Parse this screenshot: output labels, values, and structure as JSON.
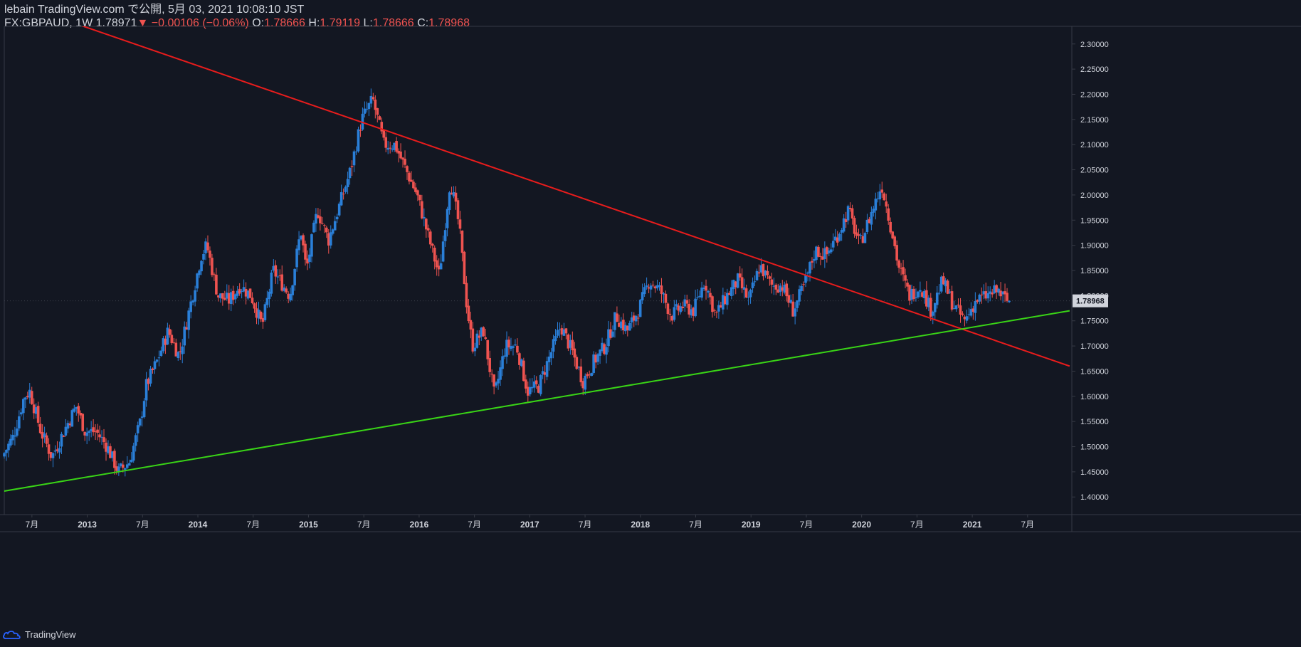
{
  "header": {
    "publish": "lebain TradingView.com で公開, 5月 03, 2021 10:08:10 JST",
    "symbol": "FX:GBPAUD, 1W",
    "last": "1.78971",
    "change": "−0.00106 (−0.06%)",
    "o_label": "O:",
    "o": "1.78666",
    "h_label": "H:",
    "h": "1.79119",
    "l_label": "L:",
    "l": "1.78666",
    "c_label": "C:",
    "c": "1.78968"
  },
  "footer": {
    "brand": "TradingView"
  },
  "colors": {
    "background": "#131722",
    "up": "#2a7fd8",
    "down": "#ef5350",
    "resistance": "#e81c1c",
    "support": "#39d416",
    "grid": "#2a2e39",
    "axis_text": "#d1d4dc"
  },
  "chart_data": {
    "type": "candlestick",
    "title": "FX:GBPAUD, 1W",
    "ylim": [
      1.365,
      2.335
    ],
    "y_ticks": [
      "1.40000",
      "1.45000",
      "1.50000",
      "1.55000",
      "1.60000",
      "1.65000",
      "1.70000",
      "1.75000",
      "1.80000",
      "1.85000",
      "1.90000",
      "1.95000",
      "2.00000",
      "2.05000",
      "2.10000",
      "2.15000",
      "2.20000",
      "2.25000",
      "2.30000"
    ],
    "last_price_label": "1.78968",
    "last_price": 1.78968,
    "x_range": [
      2012.25,
      2021.9
    ],
    "x_ticks": [
      {
        "label": "7月",
        "t": 2012.5
      },
      {
        "label": "2013",
        "t": 2013.0
      },
      {
        "label": "7月",
        "t": 2013.5
      },
      {
        "label": "2014",
        "t": 2014.0
      },
      {
        "label": "7月",
        "t": 2014.5
      },
      {
        "label": "2015",
        "t": 2015.0
      },
      {
        "label": "7月",
        "t": 2015.5
      },
      {
        "label": "2016",
        "t": 2016.0
      },
      {
        "label": "7月",
        "t": 2016.5
      },
      {
        "label": "2017",
        "t": 2017.0
      },
      {
        "label": "7月",
        "t": 2017.5
      },
      {
        "label": "2018",
        "t": 2018.0
      },
      {
        "label": "7月",
        "t": 2018.5
      },
      {
        "label": "2019",
        "t": 2019.0
      },
      {
        "label": "7月",
        "t": 2019.5
      },
      {
        "label": "2020",
        "t": 2020.0
      },
      {
        "label": "7月",
        "t": 2020.5
      },
      {
        "label": "2021",
        "t": 2021.0
      },
      {
        "label": "7月",
        "t": 2021.5
      }
    ],
    "price_path": [
      [
        2012.25,
        1.48
      ],
      [
        2012.35,
        1.52
      ],
      [
        2012.45,
        1.6
      ],
      [
        2012.5,
        1.61
      ],
      [
        2012.6,
        1.53
      ],
      [
        2012.7,
        1.48
      ],
      [
        2012.85,
        1.55
      ],
      [
        2012.92,
        1.58
      ],
      [
        2013.0,
        1.53
      ],
      [
        2013.1,
        1.53
      ],
      [
        2013.2,
        1.5
      ],
      [
        2013.3,
        1.45
      ],
      [
        2013.4,
        1.47
      ],
      [
        2013.5,
        1.55
      ],
      [
        2013.55,
        1.62
      ],
      [
        2013.65,
        1.67
      ],
      [
        2013.75,
        1.73
      ],
      [
        2013.85,
        1.68
      ],
      [
        2013.92,
        1.75
      ],
      [
        2014.0,
        1.83
      ],
      [
        2014.05,
        1.88
      ],
      [
        2014.1,
        1.9
      ],
      [
        2014.2,
        1.8
      ],
      [
        2014.3,
        1.79
      ],
      [
        2014.4,
        1.82
      ],
      [
        2014.5,
        1.8
      ],
      [
        2014.6,
        1.74
      ],
      [
        2014.7,
        1.85
      ],
      [
        2014.85,
        1.8
      ],
      [
        2014.95,
        1.93
      ],
      [
        2015.0,
        1.85
      ],
      [
        2015.1,
        1.97
      ],
      [
        2015.2,
        1.91
      ],
      [
        2015.3,
        1.98
      ],
      [
        2015.4,
        2.05
      ],
      [
        2015.5,
        2.15
      ],
      [
        2015.6,
        2.19
      ],
      [
        2015.7,
        2.1
      ],
      [
        2015.8,
        2.1
      ],
      [
        2015.9,
        2.05
      ],
      [
        2016.0,
        2.0
      ],
      [
        2016.1,
        1.92
      ],
      [
        2016.2,
        1.84
      ],
      [
        2016.3,
        2.03
      ],
      [
        2016.38,
        1.94
      ],
      [
        2016.45,
        1.78
      ],
      [
        2016.5,
        1.7
      ],
      [
        2016.6,
        1.73
      ],
      [
        2016.7,
        1.6
      ],
      [
        2016.8,
        1.7
      ],
      [
        2016.9,
        1.7
      ],
      [
        2017.0,
        1.61
      ],
      [
        2017.1,
        1.62
      ],
      [
        2017.2,
        1.68
      ],
      [
        2017.3,
        1.74
      ],
      [
        2017.4,
        1.69
      ],
      [
        2017.5,
        1.63
      ],
      [
        2017.6,
        1.67
      ],
      [
        2017.7,
        1.7
      ],
      [
        2017.8,
        1.76
      ],
      [
        2017.9,
        1.73
      ],
      [
        2018.0,
        1.77
      ],
      [
        2018.1,
        1.83
      ],
      [
        2018.2,
        1.81
      ],
      [
        2018.3,
        1.76
      ],
      [
        2018.4,
        1.78
      ],
      [
        2018.5,
        1.77
      ],
      [
        2018.6,
        1.83
      ],
      [
        2018.7,
        1.76
      ],
      [
        2018.8,
        1.8
      ],
      [
        2018.9,
        1.83
      ],
      [
        2019.0,
        1.79
      ],
      [
        2019.1,
        1.86
      ],
      [
        2019.2,
        1.82
      ],
      [
        2019.3,
        1.82
      ],
      [
        2019.4,
        1.77
      ],
      [
        2019.5,
        1.82
      ],
      [
        2019.6,
        1.89
      ],
      [
        2019.7,
        1.88
      ],
      [
        2019.8,
        1.92
      ],
      [
        2019.9,
        1.97
      ],
      [
        2020.0,
        1.9
      ],
      [
        2020.1,
        1.96
      ],
      [
        2020.2,
        2.02
      ],
      [
        2020.25,
        1.97
      ],
      [
        2020.3,
        1.92
      ],
      [
        2020.35,
        1.86
      ],
      [
        2020.45,
        1.8
      ],
      [
        2020.55,
        1.82
      ],
      [
        2020.65,
        1.77
      ],
      [
        2020.75,
        1.83
      ],
      [
        2020.85,
        1.78
      ],
      [
        2020.95,
        1.75
      ],
      [
        2021.05,
        1.79
      ],
      [
        2021.15,
        1.8
      ],
      [
        2021.25,
        1.81
      ],
      [
        2021.33,
        1.7897
      ]
    ],
    "series": [
      {
        "name": "GBPAUD weekly price",
        "type": "candlestick"
      },
      {
        "name": "Resistance trendline",
        "type": "line",
        "color": "#e81c1c",
        "points": [
          [
            2012.9,
            2.34
          ],
          [
            2021.88,
            1.66
          ]
        ]
      },
      {
        "name": "Support trendline",
        "type": "line",
        "color": "#39d416",
        "points": [
          [
            2011.8,
            1.395
          ],
          [
            2021.88,
            1.77
          ]
        ]
      }
    ]
  }
}
